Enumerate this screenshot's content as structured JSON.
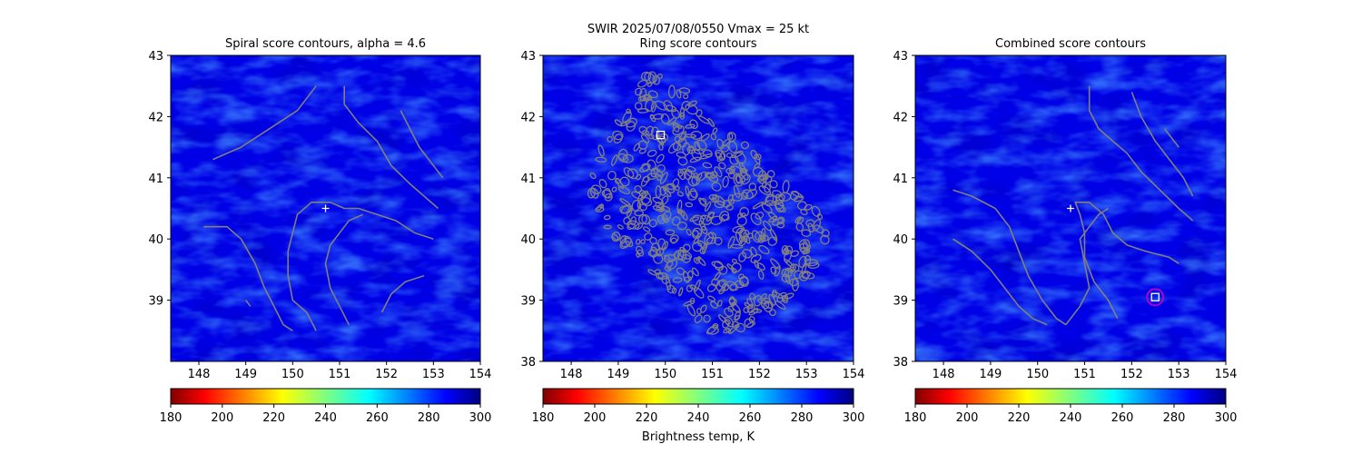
{
  "figure": {
    "suptitle_line1": "SWIR  2025/07/08/0550    Vmax = 25 kt",
    "colorbar_label": "Brightness temp, K"
  },
  "colors": {
    "contour": "#808080",
    "cloud_background": "#0000e6",
    "cloud_dark": "#00008f",
    "cloud_bright": "#1f6cff",
    "marker_white": "#ffffff",
    "center_circle": "#c000c0"
  },
  "colorbar": {
    "cmap": "jet",
    "range": [
      180,
      300
    ],
    "ticks": [
      "180",
      "200",
      "220",
      "240",
      "260",
      "280",
      "300"
    ]
  },
  "chart_data": [
    {
      "type": "heatmap",
      "title": "Spiral score contours, alpha =  4.6",
      "xlim": [
        147.4,
        154.0
      ],
      "ylim": [
        38.0,
        43.0
      ],
      "xticks": [
        "148",
        "149",
        "150",
        "151",
        "152",
        "153",
        "154"
      ],
      "yticks": [
        "39",
        "40",
        "41",
        "42",
        "43"
      ],
      "markers": [
        {
          "kind": "plus",
          "x": 150.7,
          "y": 40.5
        }
      ],
      "contours": [
        [
          [
            148.3,
            41.3
          ],
          [
            148.9,
            41.5
          ],
          [
            149.5,
            41.8
          ],
          [
            150.1,
            42.1
          ],
          [
            150.5,
            42.5
          ]
        ],
        [
          [
            151.1,
            42.5
          ],
          [
            151.1,
            42.2
          ],
          [
            151.4,
            41.9
          ],
          [
            151.8,
            41.6
          ],
          [
            152.1,
            41.2
          ],
          [
            152.5,
            40.9
          ],
          [
            152.8,
            40.7
          ],
          [
            153.1,
            40.5
          ]
        ],
        [
          [
            152.3,
            42.1
          ],
          [
            152.5,
            41.8
          ],
          [
            152.7,
            41.5
          ],
          [
            153.0,
            41.2
          ],
          [
            153.2,
            41.0
          ]
        ],
        [
          [
            148.1,
            40.2
          ],
          [
            148.6,
            40.2
          ],
          [
            148.9,
            40.0
          ],
          [
            149.2,
            39.6
          ],
          [
            149.4,
            39.2
          ],
          [
            149.6,
            38.9
          ],
          [
            149.8,
            38.6
          ],
          [
            150.0,
            38.5
          ]
        ],
        [
          [
            150.5,
            38.5
          ],
          [
            150.3,
            38.8
          ],
          [
            150.0,
            39.0
          ],
          [
            149.9,
            39.4
          ],
          [
            149.9,
            39.8
          ],
          [
            150.0,
            40.1
          ],
          [
            150.1,
            40.4
          ],
          [
            150.4,
            40.6
          ],
          [
            150.8,
            40.6
          ],
          [
            151.1,
            40.5
          ],
          [
            151.4,
            40.5
          ],
          [
            151.8,
            40.4
          ],
          [
            152.2,
            40.3
          ],
          [
            152.6,
            40.1
          ],
          [
            153.0,
            40.0
          ]
        ],
        [
          [
            151.2,
            38.6
          ],
          [
            151.0,
            38.9
          ],
          [
            150.8,
            39.2
          ],
          [
            150.7,
            39.6
          ],
          [
            150.8,
            39.9
          ],
          [
            151.0,
            40.1
          ],
          [
            151.2,
            40.3
          ],
          [
            151.5,
            40.4
          ]
        ],
        [
          [
            151.9,
            38.8
          ],
          [
            152.1,
            39.1
          ],
          [
            152.4,
            39.3
          ],
          [
            152.8,
            39.4
          ]
        ],
        [
          [
            149.0,
            39.0
          ],
          [
            149.1,
            38.9
          ]
        ]
      ]
    },
    {
      "type": "heatmap",
      "title": "Ring score contours",
      "xlim": [
        147.4,
        154.0
      ],
      "ylim": [
        38.0,
        43.0
      ],
      "xticks": [
        "148",
        "149",
        "150",
        "151",
        "152",
        "153",
        "154"
      ],
      "yticks": [
        "38",
        "39",
        "40",
        "41",
        "42",
        "43"
      ],
      "markers": [
        {
          "kind": "square",
          "x": 149.9,
          "y": 41.7
        }
      ],
      "ring_region": [
        [
          149.6,
          42.7
        ],
        [
          150.2,
          42.7
        ],
        [
          150.8,
          42.0
        ],
        [
          151.6,
          41.6
        ],
        [
          152.5,
          41.0
        ],
        [
          153.4,
          40.3
        ],
        [
          153.5,
          39.8
        ],
        [
          153.2,
          39.4
        ],
        [
          152.4,
          38.8
        ],
        [
          151.6,
          38.4
        ],
        [
          151.0,
          38.4
        ],
        [
          150.3,
          39.0
        ],
        [
          149.5,
          39.6
        ],
        [
          148.8,
          40.1
        ],
        [
          148.4,
          40.8
        ],
        [
          148.6,
          41.6
        ],
        [
          149.0,
          42.2
        ]
      ]
    },
    {
      "type": "heatmap",
      "title": "Combined score contours",
      "xlim": [
        147.4,
        154.0
      ],
      "ylim": [
        38.0,
        43.0
      ],
      "xticks": [
        "148",
        "149",
        "150",
        "151",
        "152",
        "153",
        "154"
      ],
      "yticks": [
        "38",
        "39",
        "40",
        "41",
        "42",
        "43"
      ],
      "markers": [
        {
          "kind": "plus",
          "x": 150.7,
          "y": 40.5
        },
        {
          "kind": "square",
          "x": 152.5,
          "y": 39.05
        },
        {
          "kind": "circle",
          "x": 152.5,
          "y": 39.05
        }
      ],
      "contours": [
        [
          [
            148.2,
            40.8
          ],
          [
            148.6,
            40.7
          ],
          [
            149.1,
            40.5
          ],
          [
            149.4,
            40.2
          ],
          [
            149.6,
            39.8
          ],
          [
            149.8,
            39.4
          ],
          [
            150.1,
            39.0
          ],
          [
            150.4,
            38.7
          ],
          [
            150.6,
            38.6
          ]
        ],
        [
          [
            148.2,
            40.0
          ],
          [
            148.6,
            39.8
          ],
          [
            149.0,
            39.5
          ],
          [
            149.3,
            39.2
          ],
          [
            149.6,
            38.9
          ],
          [
            149.9,
            38.7
          ],
          [
            150.2,
            38.6
          ]
        ],
        [
          [
            151.1,
            42.5
          ],
          [
            151.1,
            42.1
          ],
          [
            151.3,
            41.8
          ],
          [
            151.6,
            41.6
          ],
          [
            151.9,
            41.4
          ],
          [
            152.2,
            41.1
          ],
          [
            152.6,
            40.8
          ],
          [
            153.0,
            40.5
          ],
          [
            153.3,
            40.3
          ]
        ],
        [
          [
            152.0,
            42.4
          ],
          [
            152.2,
            42.0
          ],
          [
            152.5,
            41.6
          ],
          [
            152.8,
            41.3
          ],
          [
            153.1,
            41.0
          ],
          [
            153.3,
            40.7
          ]
        ],
        [
          [
            152.7,
            41.8
          ],
          [
            152.9,
            41.6
          ],
          [
            153.0,
            41.5
          ]
        ],
        [
          [
            150.6,
            38.6
          ],
          [
            150.9,
            38.9
          ],
          [
            151.1,
            39.2
          ],
          [
            151.0,
            39.6
          ],
          [
            150.9,
            40.0
          ],
          [
            151.1,
            40.2
          ],
          [
            151.3,
            40.4
          ],
          [
            151.5,
            40.5
          ]
        ],
        [
          [
            151.7,
            38.7
          ],
          [
            151.5,
            39.0
          ],
          [
            151.2,
            39.3
          ],
          [
            151.0,
            39.7
          ],
          [
            151.0,
            40.1
          ],
          [
            150.9,
            40.4
          ],
          [
            150.8,
            40.6
          ],
          [
            151.1,
            40.6
          ],
          [
            151.4,
            40.4
          ],
          [
            151.6,
            40.1
          ],
          [
            151.9,
            39.9
          ],
          [
            152.3,
            39.8
          ],
          [
            152.8,
            39.7
          ],
          [
            153.0,
            39.6
          ]
        ]
      ]
    }
  ]
}
